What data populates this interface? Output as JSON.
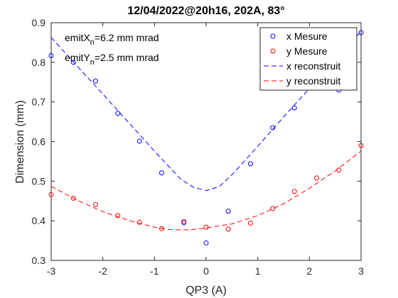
{
  "chart_data": {
    "type": "scatter",
    "title": "12/04/2022@20h16, 202A, 83°",
    "xlabel": "QP3 (A)",
    "ylabel": "Dimension (mm)",
    "xlim": [
      -3,
      3
    ],
    "ylim": [
      0.3,
      0.9
    ],
    "xticks": [
      -3,
      -2,
      -1,
      0,
      1,
      2,
      3
    ],
    "yticks": [
      0.3,
      0.4,
      0.5,
      0.6,
      0.7,
      0.8,
      0.9
    ],
    "grid": false,
    "legend_position": "top-right",
    "annotations": [
      {
        "base": "emitX",
        "sub": "n",
        "rest": "=6.2 mm mrad"
      },
      {
        "base": "emitY",
        "sub": "n",
        "rest": "=2.5 mm mrad"
      }
    ],
    "series": [
      {
        "name": "x Mesure",
        "kind": "markers",
        "color": "#0000ff",
        "x": [
          -3.0,
          -2.57,
          -2.14,
          -1.71,
          -1.29,
          -0.86,
          -0.43,
          0.0,
          0.43,
          0.86,
          1.29,
          1.71,
          2.14,
          2.57,
          3.0
        ],
        "y": [
          0.817,
          0.8,
          0.753,
          0.671,
          0.601,
          0.521,
          0.395,
          0.344,
          0.424,
          0.544,
          0.635,
          0.685,
          0.74,
          0.73,
          0.875
        ]
      },
      {
        "name": "y Mesure",
        "kind": "markers",
        "color": "#ff0000",
        "x": [
          -3.0,
          -2.57,
          -2.14,
          -1.71,
          -1.29,
          -0.86,
          -0.43,
          0.0,
          0.43,
          0.86,
          1.29,
          1.71,
          2.14,
          2.57,
          3.0
        ],
        "y": [
          0.466,
          0.457,
          0.441,
          0.413,
          0.396,
          0.38,
          0.398,
          0.384,
          0.379,
          0.394,
          0.431,
          0.474,
          0.508,
          0.528,
          0.59
        ]
      },
      {
        "name": "x reconstruit",
        "kind": "dashed-line",
        "color": "#0000ff",
        "x": [
          -3.0,
          -2.5,
          -2.0,
          -1.5,
          -1.0,
          -0.5,
          -0.25,
          0.0,
          0.25,
          0.5,
          1.0,
          1.5,
          2.0,
          2.5,
          3.0
        ],
        "y": [
          0.863,
          0.791,
          0.72,
          0.648,
          0.576,
          0.506,
          0.485,
          0.476,
          0.486,
          0.516,
          0.588,
          0.662,
          0.734,
          0.806,
          0.878
        ]
      },
      {
        "name": "y reconstruit",
        "kind": "dashed-line",
        "color": "#ff0000",
        "x": [
          -3.0,
          -2.5,
          -2.0,
          -1.5,
          -1.0,
          -0.75,
          -0.5,
          -0.25,
          0.0,
          0.5,
          1.0,
          1.5,
          2.0,
          2.5,
          3.0
        ],
        "y": [
          0.487,
          0.452,
          0.423,
          0.401,
          0.384,
          0.378,
          0.377,
          0.378,
          0.382,
          0.392,
          0.413,
          0.443,
          0.482,
          0.526,
          0.576
        ]
      }
    ]
  }
}
